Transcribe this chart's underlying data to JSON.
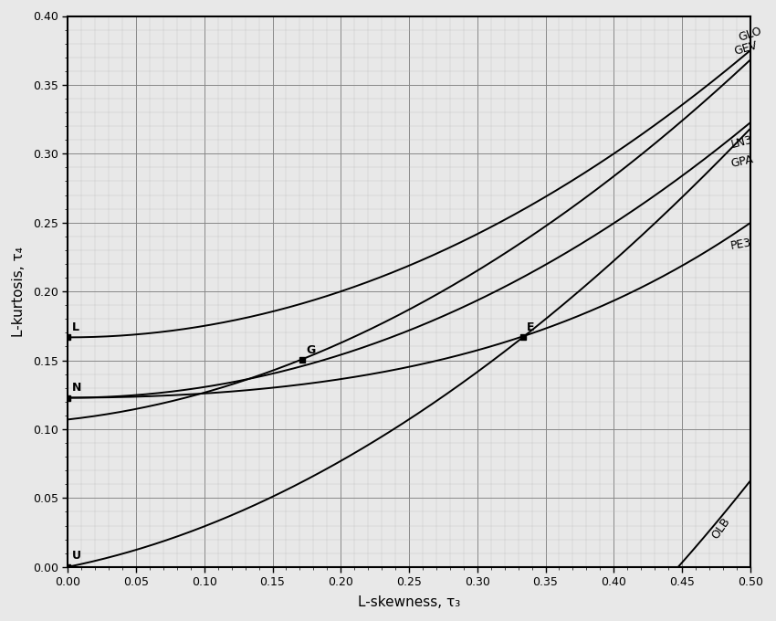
{
  "title": "",
  "xlabel": "L-skewness, τ₃",
  "ylabel": "L-kurtosis, τ₄",
  "xlim": [
    0.0,
    0.5
  ],
  "ylim": [
    0.0,
    0.4
  ],
  "xticks": [
    0.0,
    0.05,
    0.1,
    0.15,
    0.2,
    0.25,
    0.3,
    0.35,
    0.4,
    0.45,
    0.5
  ],
  "yticks": [
    0.0,
    0.05,
    0.1,
    0.15,
    0.2,
    0.25,
    0.3,
    0.35,
    0.4
  ],
  "line_color": "#000000",
  "background_color": "#e8e8e8",
  "grid_major_color": "#888888",
  "grid_minor_color": "#bbbbbb",
  "special_points": {
    "L": [
      0.0,
      0.16667
    ],
    "N": [
      0.0,
      0.1226
    ],
    "U": [
      0.0,
      0.0
    ],
    "G": [
      0.17157,
      0.15029
    ],
    "E": [
      0.33333,
      0.16667
    ]
  }
}
